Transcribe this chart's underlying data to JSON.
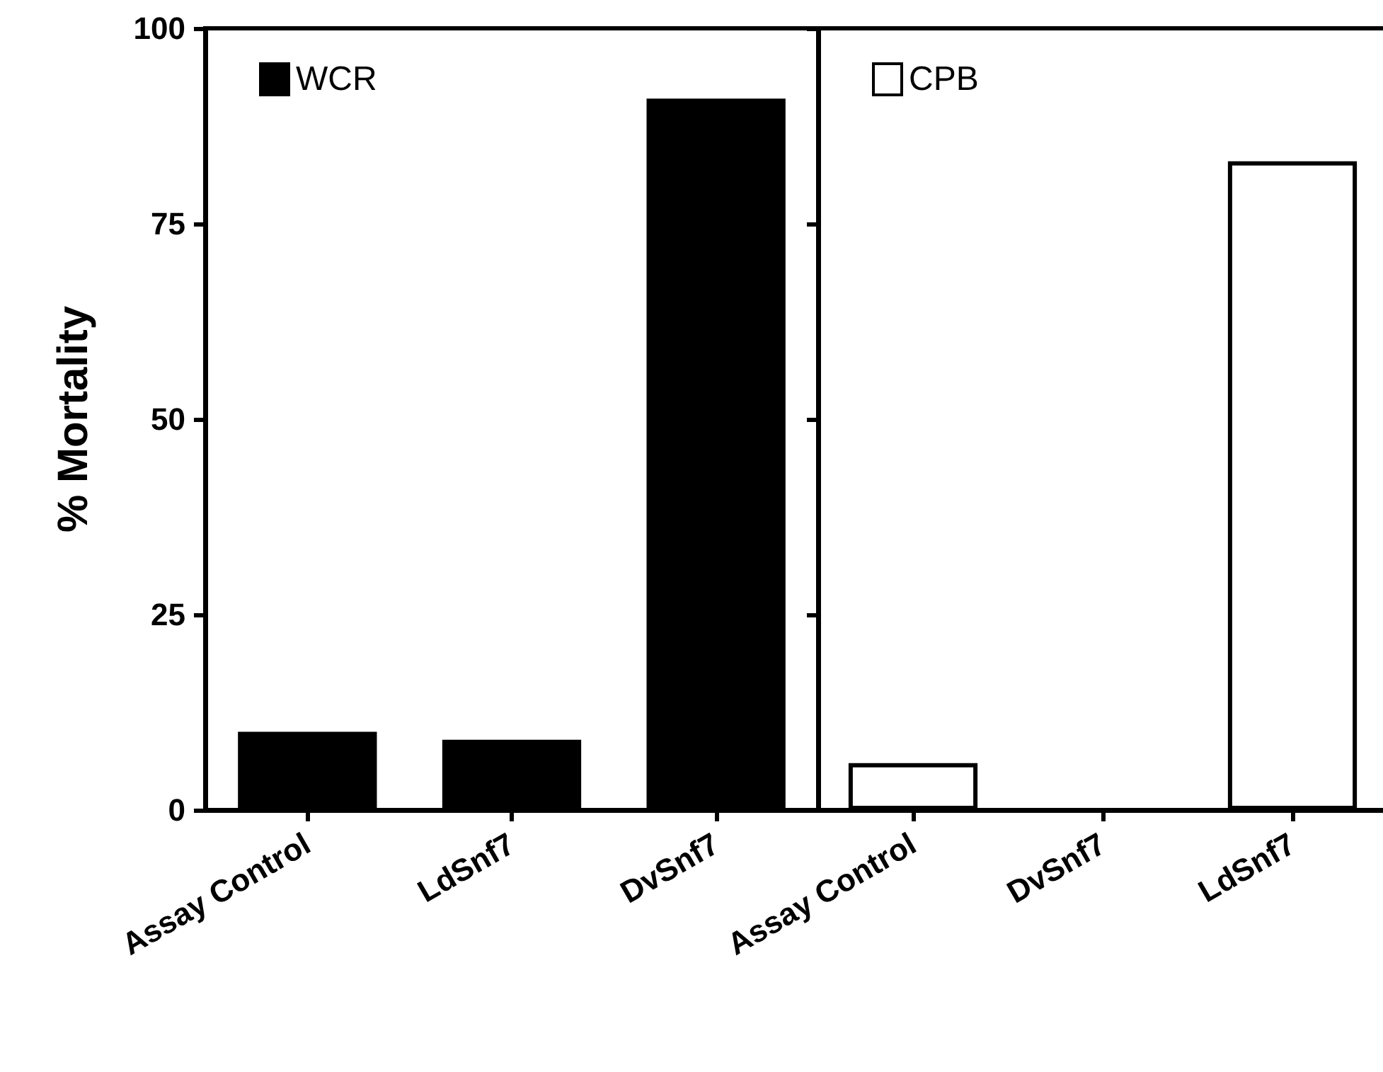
{
  "chart_data": [
    {
      "type": "bar",
      "ylabel": "% Mortality",
      "categories": [
        "Assay Control",
        "LdSnf7",
        "DvSnf7"
      ],
      "series": [
        {
          "name": "WCR",
          "color": "#000000",
          "values": [
            10,
            9,
            91
          ]
        }
      ],
      "ylim": [
        0,
        100
      ],
      "yticks": [
        0,
        25,
        50,
        75,
        100
      ],
      "legend": "top left"
    },
    {
      "type": "bar",
      "categories": [
        "Assay Control",
        "DvSnf7",
        "LdSnf7"
      ],
      "series": [
        {
          "name": "CPB",
          "color": "#ffffff",
          "values": [
            6,
            0,
            83
          ]
        }
      ],
      "ylim": [
        0,
        100
      ],
      "yticks": [
        0,
        25,
        50,
        75,
        100
      ],
      "legend": "top left",
      "tick_labels": "x"
    }
  ]
}
